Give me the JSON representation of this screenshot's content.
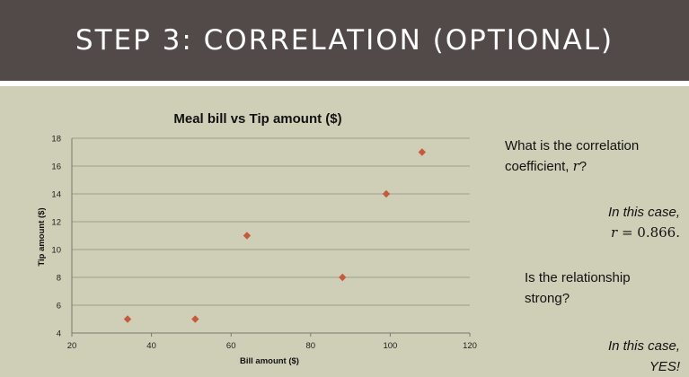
{
  "slide": {
    "title": "STEP 3: CORRELATION (OPTIONAL)"
  },
  "text_panel": {
    "question1_line1": "What is the correlation",
    "question1_line2_prefix": "coefficient, ",
    "question1_var": "r",
    "question1_suffix": "?",
    "answer1_line1": "In this case,",
    "answer1_var": "r",
    "answer1_eq": " = 0.866.",
    "question2_line1": "Is the relationship",
    "question2_line2": "strong?",
    "answer2_line1": "In this case,",
    "answer2_line2": "YES!"
  },
  "chart_data": {
    "type": "scatter",
    "title": "Meal bill vs Tip amount ($)",
    "xlabel": "Bill amount ($)",
    "ylabel": "Tip amount ($)",
    "xlim": [
      20,
      120
    ],
    "ylim": [
      4,
      18
    ],
    "xticks": [
      20,
      40,
      60,
      80,
      100,
      120
    ],
    "yticks": [
      4,
      6,
      8,
      10,
      12,
      14,
      16,
      18
    ],
    "grid": "horizontal",
    "marker": "diamond",
    "series": [
      {
        "points": [
          [
            34,
            5
          ],
          [
            51,
            5
          ],
          [
            64,
            11
          ],
          [
            88,
            8
          ],
          [
            99,
            14
          ],
          [
            108,
            17
          ]
        ],
        "color": "#c55a3c"
      }
    ]
  }
}
